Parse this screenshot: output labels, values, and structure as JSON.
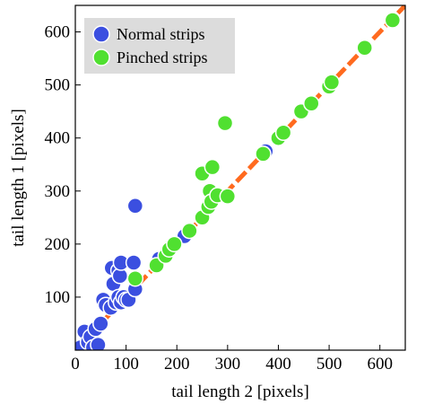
{
  "chart_data": {
    "type": "scatter",
    "title": "",
    "xlabel": "tail length 2 [pixels]",
    "ylabel": "tail length 1 [pixels]",
    "xlim": [
      0,
      650
    ],
    "ylim": [
      0,
      650
    ],
    "xticks": [
      "0",
      "100",
      "200",
      "300",
      "400",
      "500",
      "600"
    ],
    "yticks": [
      "100",
      "200",
      "300",
      "400",
      "500",
      "600"
    ],
    "grid": false,
    "legend_position": "top-left",
    "legend_background": "#dcdcdc",
    "reference_line": {
      "type": "identity",
      "style": "dashed",
      "color": "#ff6a1f"
    },
    "series": [
      {
        "name": "Normal strips",
        "color": "#3b4fe0",
        "points": [
          [
            10,
            5
          ],
          [
            18,
            35
          ],
          [
            25,
            15
          ],
          [
            30,
            25
          ],
          [
            35,
            5
          ],
          [
            40,
            40
          ],
          [
            45,
            10
          ],
          [
            50,
            50
          ],
          [
            55,
            95
          ],
          [
            60,
            85
          ],
          [
            70,
            80
          ],
          [
            72,
            155
          ],
          [
            75,
            125
          ],
          [
            80,
            90
          ],
          [
            85,
            100
          ],
          [
            85,
            150
          ],
          [
            88,
            140
          ],
          [
            90,
            90
          ],
          [
            90,
            165
          ],
          [
            95,
            100
          ],
          [
            100,
            95
          ],
          [
            105,
            95
          ],
          [
            115,
            165
          ],
          [
            118,
            115
          ],
          [
            118,
            272
          ],
          [
            165,
            172
          ],
          [
            215,
            215
          ],
          [
            375,
            375
          ]
        ]
      },
      {
        "name": "Pinched strips",
        "color": "#50e030",
        "points": [
          [
            118,
            135
          ],
          [
            160,
            160
          ],
          [
            178,
            178
          ],
          [
            185,
            190
          ],
          [
            195,
            200
          ],
          [
            225,
            225
          ],
          [
            250,
            250
          ],
          [
            250,
            333
          ],
          [
            262,
            270
          ],
          [
            265,
            300
          ],
          [
            268,
            280
          ],
          [
            270,
            345
          ],
          [
            280,
            292
          ],
          [
            295,
            428
          ],
          [
            300,
            290
          ],
          [
            370,
            370
          ],
          [
            400,
            400
          ],
          [
            410,
            410
          ],
          [
            445,
            450
          ],
          [
            465,
            465
          ],
          [
            500,
            497
          ],
          [
            505,
            505
          ],
          [
            570,
            570
          ],
          [
            625,
            622
          ]
        ]
      }
    ]
  }
}
